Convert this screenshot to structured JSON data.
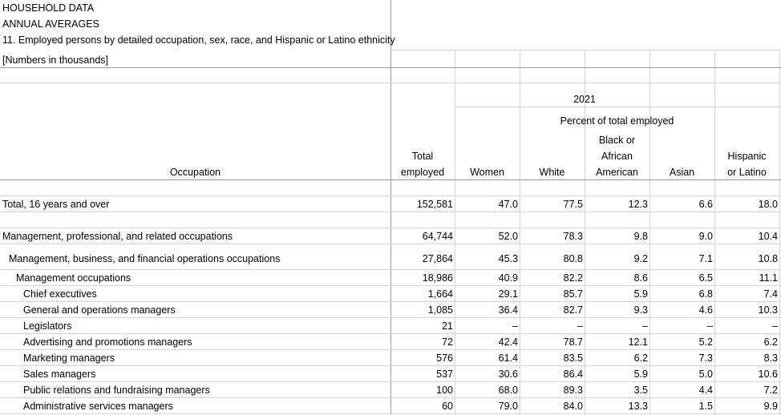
{
  "header": {
    "line1": "HOUSEHOLD DATA",
    "line2": "ANNUAL AVERAGES",
    "line3": "11. Employed persons by detailed occupation, sex, race, and Hispanic or Latino ethnicity",
    "line4": "[Numbers in thousands]"
  },
  "columns": {
    "year": "2021",
    "percent_group": "Percent of total employed",
    "occupation": "Occupation",
    "total_1": "Total",
    "total_2": "employed",
    "women": "Women",
    "white": "White",
    "black_1": "Black or",
    "black_2": "African",
    "black_3": "American",
    "asian": "Asian",
    "hisp_1": "Hispanic",
    "hisp_2": "or Latino"
  },
  "rows": [
    {
      "label": "Total, 16 years and over",
      "total": "152,581",
      "women": "47.0",
      "white": "77.5",
      "black": "12.3",
      "asian": "6.6",
      "hispanic": "18.0"
    },
    {
      "label": "Management,  professional, and related occupations",
      "total": "64,744",
      "women": "52.0",
      "white": "78.3",
      "black": "9.8",
      "asian": "9.0",
      "hispanic": "10.4"
    },
    {
      "label": "Management, business, and financial operations occupations",
      "total": "27,864",
      "women": "45.3",
      "white": "80.8",
      "black": "9.2",
      "asian": "7.1",
      "hispanic": "10.8"
    },
    {
      "label": "Management occupations",
      "total": "18,986",
      "women": "40.9",
      "white": "82.2",
      "black": "8.6",
      "asian": "6.5",
      "hispanic": "11.1"
    },
    {
      "label": "Chief executives",
      "total": "1,664",
      "women": "29.1",
      "white": "85.7",
      "black": "5.9",
      "asian": "6.8",
      "hispanic": "7.4"
    },
    {
      "label": "General and operations managers",
      "total": "1,085",
      "women": "36.4",
      "white": "82.7",
      "black": "9.3",
      "asian": "4.6",
      "hispanic": "10.3"
    },
    {
      "label": "Legislators",
      "total": "21",
      "women": "–",
      "white": "–",
      "black": "–",
      "asian": "–",
      "hispanic": "–"
    },
    {
      "label": "Advertising and promotions managers",
      "total": "72",
      "women": "42.4",
      "white": "78.7",
      "black": "12.1",
      "asian": "5.2",
      "hispanic": "6.2"
    },
    {
      "label": "Marketing managers",
      "total": "576",
      "women": "61.4",
      "white": "83.5",
      "black": "6.2",
      "asian": "7.3",
      "hispanic": "8.3"
    },
    {
      "label": "Sales managers",
      "total": "537",
      "women": "30.6",
      "white": "86.4",
      "black": "5.9",
      "asian": "5.0",
      "hispanic": "10.6"
    },
    {
      "label": "Public relations and fundraising managers",
      "total": "100",
      "women": "68.0",
      "white": "89.3",
      "black": "3.5",
      "asian": "4.4",
      "hispanic": "7.2"
    },
    {
      "label": "Administrative services managers",
      "total": "60",
      "women": "79.0",
      "white": "84.0",
      "black": "13.3",
      "asian": "1.5",
      "hispanic": "9.9"
    }
  ]
}
